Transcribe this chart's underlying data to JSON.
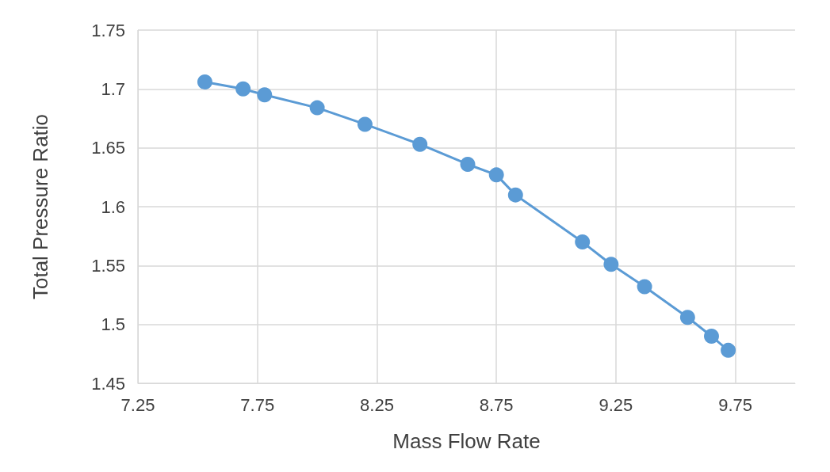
{
  "chart_data": {
    "type": "line",
    "xlabel": "Mass Flow Rate",
    "ylabel": "Total Pressure Ratio",
    "x": [
      7.53,
      7.69,
      7.78,
      8.0,
      8.2,
      8.43,
      8.63,
      8.75,
      8.83,
      9.11,
      9.23,
      9.37,
      9.55,
      9.65,
      9.72
    ],
    "series": [
      {
        "color": "#5b9bd5",
        "values": [
          1.706,
          1.7,
          1.695,
          1.684,
          1.67,
          1.653,
          1.636,
          1.627,
          1.61,
          1.57,
          1.551,
          1.532,
          1.506,
          1.49,
          1.478
        ]
      }
    ],
    "xlim": [
      7.25,
      10
    ],
    "xticks": [
      7.25,
      7.75,
      8.25,
      8.75,
      9.25,
      9.75
    ],
    "ylim": [
      1.45,
      1.75
    ],
    "yticks": [
      1.45,
      1.5,
      1.55,
      1.6,
      1.65,
      1.7,
      1.75
    ],
    "grid": true,
    "marker": "circle",
    "line_style": "solid"
  }
}
